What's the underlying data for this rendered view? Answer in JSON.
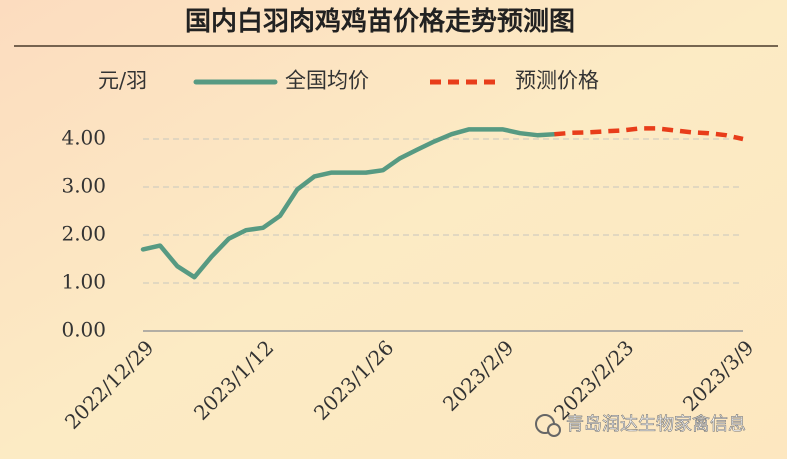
{
  "chart_data": {
    "type": "line",
    "title": "国内白羽肉鸡鸡苗价格走势预测图",
    "y_label": "元/羽",
    "watermark": "青岛润达生物家禽信息",
    "categories": [
      "2022/12/29",
      null,
      null,
      null,
      null,
      null,
      null,
      "2023/1/12",
      null,
      null,
      null,
      null,
      null,
      null,
      "2023/1/26",
      null,
      null,
      null,
      null,
      null,
      null,
      "2023/2/9",
      null,
      null,
      null,
      null,
      null,
      null,
      "2023/2/23",
      null,
      null,
      null,
      null,
      null,
      null,
      "2023/3/9"
    ],
    "series": [
      {
        "name": "全国均价",
        "color": "#579a82",
        "dashed": false,
        "values": [
          1.7,
          1.78,
          1.35,
          1.12,
          1.55,
          1.92,
          2.1,
          2.15,
          2.4,
          2.95,
          3.22,
          3.3,
          3.3,
          3.3,
          3.35,
          3.6,
          3.78,
          3.95,
          4.1,
          4.2,
          4.2,
          4.2,
          4.12,
          4.08,
          4.1,
          null,
          null,
          null,
          null,
          null,
          null,
          null,
          null,
          null,
          null,
          null
        ]
      },
      {
        "name": "预测价格",
        "color": "#e83d1a",
        "dashed": true,
        "values": [
          null,
          null,
          null,
          null,
          null,
          null,
          null,
          null,
          null,
          null,
          null,
          null,
          null,
          null,
          null,
          null,
          null,
          null,
          null,
          null,
          null,
          null,
          null,
          null,
          4.1,
          4.13,
          4.14,
          4.16,
          4.18,
          4.22,
          4.22,
          4.18,
          4.14,
          4.12,
          4.08,
          4.0
        ]
      }
    ],
    "ylim": [
      0,
      4.5
    ],
    "yticks": [
      {
        "value": 0,
        "label": "0.00"
      },
      {
        "value": 1,
        "label": "1.00"
      },
      {
        "value": 2,
        "label": "2.00"
      },
      {
        "value": 3,
        "label": "3.00"
      },
      {
        "value": 4,
        "label": "4.00"
      }
    ],
    "grid": true
  }
}
